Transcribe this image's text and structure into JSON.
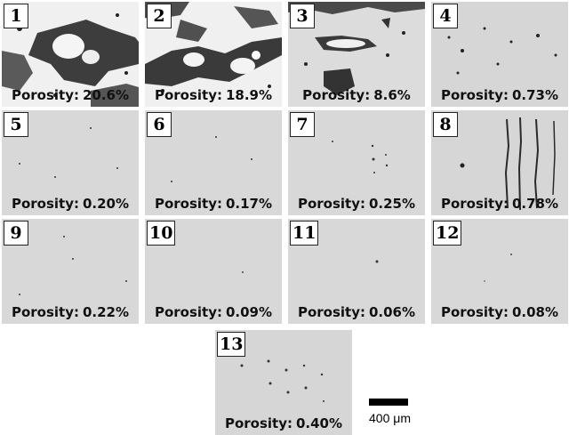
{
  "porosity_label": "Porosity:",
  "samples": [
    {
      "number": "1",
      "porosity": "20.6%"
    },
    {
      "number": "2",
      "porosity": "18.9%"
    },
    {
      "number": "3",
      "porosity": "8.6%"
    },
    {
      "number": "4",
      "porosity": "0.73%"
    },
    {
      "number": "5",
      "porosity": "0.20%"
    },
    {
      "number": "6",
      "porosity": "0.17%"
    },
    {
      "number": "7",
      "porosity": "0.25%"
    },
    {
      "number": "8",
      "porosity": "0.78%"
    },
    {
      "number": "9",
      "porosity": "0.22%"
    },
    {
      "number": "10",
      "porosity": "0.09%"
    },
    {
      "number": "11",
      "porosity": "0.06%"
    },
    {
      "number": "12",
      "porosity": "0.08%"
    },
    {
      "number": "13",
      "porosity": "0.40%"
    }
  ],
  "scale_bar": {
    "label": "400 μm"
  },
  "colors": {
    "matrix": "#d9d9d9",
    "pore": "#1a1a1a",
    "dark_phase": "#4a4a4a",
    "bright_phase": "#f2f2f2"
  }
}
